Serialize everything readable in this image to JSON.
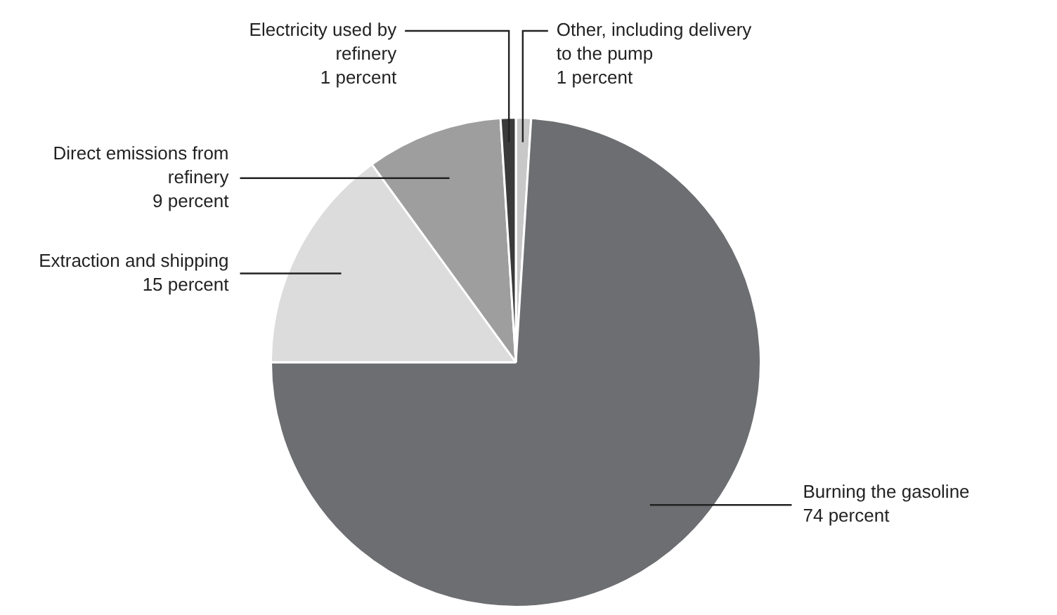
{
  "chart_data": {
    "type": "pie",
    "categories": [
      "Other, including delivery to the pump",
      "Burning the gasoline",
      "Extraction and shipping",
      "Direct emissions from refinery",
      "Electricity used by refinery"
    ],
    "values": [
      1,
      74,
      15,
      9,
      1
    ],
    "colors": [
      "#c8c8c8",
      "#6d6e71",
      "#dcdcdc",
      "#9e9e9e",
      "#3a3a3a"
    ],
    "value_labels": [
      "1 percent",
      "74 percent",
      "15 percent",
      "9 percent",
      "1 percent"
    ],
    "legend": false
  }
}
